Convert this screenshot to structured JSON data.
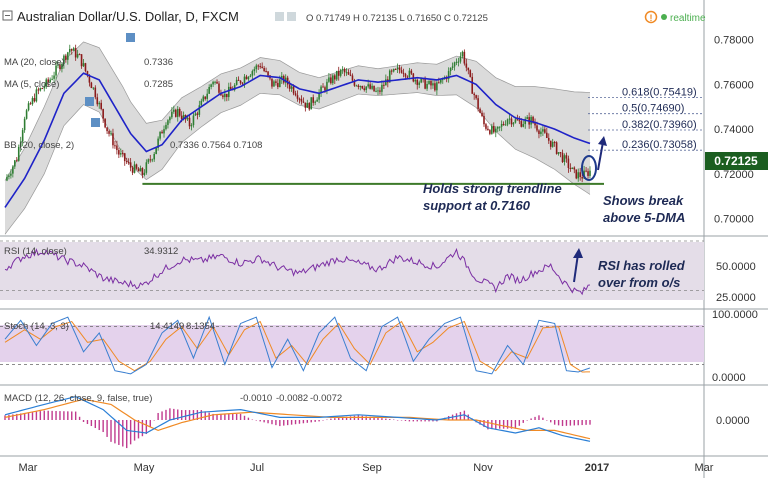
{
  "header": {
    "title": "Australian Dollar/U.S. Dollar, D, FXCM",
    "ohlc": "O 0.71749  H 0.72135  L 0.71650  C 0.72125",
    "realtime_label": "realtime"
  },
  "legend": {
    "ma20": "MA (20, close)",
    "ma20_value": "0.7336",
    "ma5": "MA (5, close)",
    "ma5_value": "0.7285",
    "bb": "BB (20, close, 2)",
    "bb_values": "0.7336  0.7564  0.7108",
    "rsi": "RSI (14, close)",
    "rsi_value": "34.9312",
    "stoch": "Stoch (14, 3, 3)",
    "stoch_k": "14.4149",
    "stoch_d": "8.1354",
    "macd": "MACD (12, 26, close, 9, false, true)",
    "macd_hist": "-0.0010",
    "macd_line": "-0.0082",
    "macd_signal": "-0.0072"
  },
  "fib_labels": [
    {
      "text": "0.618(0.75419)",
      "level": 0.75419
    },
    {
      "text": "0.5(0.74690)",
      "level": 0.7469
    },
    {
      "text": "0.382(0.73960)",
      "level": 0.7396
    },
    {
      "text": "0.236(0.73058)",
      "level": 0.73058
    }
  ],
  "annotations": {
    "trendline_line1": "Holds strong trendline",
    "trendline_line2": "support at 0.7160",
    "break_line1": "Shows break",
    "break_line2": "above 5-DMA",
    "rsi_line1": "RSI has rolled",
    "rsi_line2": "over from o/s"
  },
  "colors": {
    "candle_up": "#2e7d32",
    "candle_down": "#8b1a1a",
    "ma20": "#1f23c8",
    "band_fill": "#cfcfcf",
    "rsi": "#7b2fa3",
    "stoch_k": "#3a7fd0",
    "stoch_d": "#f08a24",
    "macd_line": "#2a7fd6",
    "macd_signal": "#f08a24",
    "macd_hist": "#c03a8e",
    "trendline": "#3d7a2a",
    "price_tag": "#1b5e20"
  },
  "chart_data": {
    "type": "candlestick",
    "x_ticks": [
      "Mar",
      "May",
      "Jul",
      "Sep",
      "Nov",
      "2017",
      "Mar"
    ],
    "price_axis_ticks": [
      "0.78000",
      "0.76000",
      "0.74000",
      "0.72000",
      "0.70000"
    ],
    "price_range": [
      0.694,
      0.787
    ],
    "last_price": "0.72125",
    "trendline_level": 0.716,
    "rsi_axis_ticks": [
      "50.0000",
      "25.0000"
    ],
    "rsi_bands": [
      30,
      70
    ],
    "stoch_axis_ticks": [
      "100.0000",
      "0.0000"
    ],
    "stoch_bands": [
      20,
      80
    ],
    "macd_axis_ticks": [
      "0.0000"
    ],
    "close_path": [
      {
        "x": 0,
        "v": 0.717
      },
      {
        "x": 6,
        "v": 0.727
      },
      {
        "x": 10,
        "v": 0.746
      },
      {
        "x": 16,
        "v": 0.756
      },
      {
        "x": 22,
        "v": 0.761
      },
      {
        "x": 28,
        "v": 0.769
      },
      {
        "x": 33,
        "v": 0.776
      },
      {
        "x": 38,
        "v": 0.772
      },
      {
        "x": 42,
        "v": 0.764
      },
      {
        "x": 46,
        "v": 0.756
      },
      {
        "x": 52,
        "v": 0.74
      },
      {
        "x": 58,
        "v": 0.729
      },
      {
        "x": 64,
        "v": 0.723
      },
      {
        "x": 70,
        "v": 0.72
      },
      {
        "x": 76,
        "v": 0.73
      },
      {
        "x": 82,
        "v": 0.744
      },
      {
        "x": 88,
        "v": 0.748
      },
      {
        "x": 94,
        "v": 0.742
      },
      {
        "x": 100,
        "v": 0.751
      },
      {
        "x": 106,
        "v": 0.762
      },
      {
        "x": 112,
        "v": 0.755
      },
      {
        "x": 118,
        "v": 0.76
      },
      {
        "x": 124,
        "v": 0.765
      },
      {
        "x": 130,
        "v": 0.769
      },
      {
        "x": 136,
        "v": 0.76
      },
      {
        "x": 142,
        "v": 0.762
      },
      {
        "x": 148,
        "v": 0.757
      },
      {
        "x": 154,
        "v": 0.75
      },
      {
        "x": 160,
        "v": 0.756
      },
      {
        "x": 166,
        "v": 0.762
      },
      {
        "x": 172,
        "v": 0.766
      },
      {
        "x": 178,
        "v": 0.761
      },
      {
        "x": 184,
        "v": 0.759
      },
      {
        "x": 190,
        "v": 0.756
      },
      {
        "x": 196,
        "v": 0.764
      },
      {
        "x": 202,
        "v": 0.767
      },
      {
        "x": 208,
        "v": 0.763
      },
      {
        "x": 214,
        "v": 0.76
      },
      {
        "x": 220,
        "v": 0.759
      },
      {
        "x": 226,
        "v": 0.765
      },
      {
        "x": 230,
        "v": 0.771
      },
      {
        "x": 233,
        "v": 0.774
      },
      {
        "x": 238,
        "v": 0.758
      },
      {
        "x": 244,
        "v": 0.742
      },
      {
        "x": 250,
        "v": 0.738
      },
      {
        "x": 256,
        "v": 0.745
      },
      {
        "x": 262,
        "v": 0.743
      },
      {
        "x": 268,
        "v": 0.744
      },
      {
        "x": 274,
        "v": 0.738
      },
      {
        "x": 280,
        "v": 0.732
      },
      {
        "x": 286,
        "v": 0.725
      },
      {
        "x": 290,
        "v": 0.72
      },
      {
        "x": 294,
        "v": 0.719
      },
      {
        "x": 298,
        "v": 0.7212
      }
    ],
    "ma20_path": [
      {
        "x": 0,
        "v": 0.705
      },
      {
        "x": 10,
        "v": 0.718
      },
      {
        "x": 20,
        "v": 0.735
      },
      {
        "x": 30,
        "v": 0.756
      },
      {
        "x": 40,
        "v": 0.765
      },
      {
        "x": 48,
        "v": 0.762
      },
      {
        "x": 56,
        "v": 0.75
      },
      {
        "x": 64,
        "v": 0.738
      },
      {
        "x": 72,
        "v": 0.73
      },
      {
        "x": 80,
        "v": 0.733
      },
      {
        "x": 90,
        "v": 0.744
      },
      {
        "x": 100,
        "v": 0.75
      },
      {
        "x": 110,
        "v": 0.756
      },
      {
        "x": 120,
        "v": 0.759
      },
      {
        "x": 130,
        "v": 0.764
      },
      {
        "x": 140,
        "v": 0.763
      },
      {
        "x": 150,
        "v": 0.758
      },
      {
        "x": 160,
        "v": 0.756
      },
      {
        "x": 170,
        "v": 0.759
      },
      {
        "x": 180,
        "v": 0.762
      },
      {
        "x": 190,
        "v": 0.761
      },
      {
        "x": 200,
        "v": 0.762
      },
      {
        "x": 210,
        "v": 0.763
      },
      {
        "x": 220,
        "v": 0.762
      },
      {
        "x": 230,
        "v": 0.764
      },
      {
        "x": 240,
        "v": 0.76
      },
      {
        "x": 250,
        "v": 0.751
      },
      {
        "x": 260,
        "v": 0.745
      },
      {
        "x": 270,
        "v": 0.743
      },
      {
        "x": 280,
        "v": 0.74
      },
      {
        "x": 290,
        "v": 0.736
      },
      {
        "x": 298,
        "v": 0.7336
      }
    ],
    "bb_width": [
      {
        "x": 0,
        "v": 0.012
      },
      {
        "x": 20,
        "v": 0.015
      },
      {
        "x": 40,
        "v": 0.014
      },
      {
        "x": 60,
        "v": 0.015
      },
      {
        "x": 80,
        "v": 0.011
      },
      {
        "x": 100,
        "v": 0.009
      },
      {
        "x": 130,
        "v": 0.008
      },
      {
        "x": 160,
        "v": 0.007
      },
      {
        "x": 190,
        "v": 0.006
      },
      {
        "x": 220,
        "v": 0.007
      },
      {
        "x": 250,
        "v": 0.012
      },
      {
        "x": 280,
        "v": 0.018
      },
      {
        "x": 298,
        "v": 0.0228
      }
    ],
    "rsi_path": [
      {
        "x": 0,
        "v": 48
      },
      {
        "x": 10,
        "v": 58
      },
      {
        "x": 20,
        "v": 62
      },
      {
        "x": 30,
        "v": 55
      },
      {
        "x": 40,
        "v": 50
      },
      {
        "x": 50,
        "v": 40
      },
      {
        "x": 60,
        "v": 36
      },
      {
        "x": 70,
        "v": 34
      },
      {
        "x": 80,
        "v": 46
      },
      {
        "x": 90,
        "v": 55
      },
      {
        "x": 100,
        "v": 54
      },
      {
        "x": 110,
        "v": 58
      },
      {
        "x": 120,
        "v": 52
      },
      {
        "x": 130,
        "v": 56
      },
      {
        "x": 140,
        "v": 48
      },
      {
        "x": 150,
        "v": 44
      },
      {
        "x": 160,
        "v": 50
      },
      {
        "x": 170,
        "v": 56
      },
      {
        "x": 180,
        "v": 52
      },
      {
        "x": 190,
        "v": 47
      },
      {
        "x": 200,
        "v": 57
      },
      {
        "x": 210,
        "v": 53
      },
      {
        "x": 220,
        "v": 49
      },
      {
        "x": 230,
        "v": 62
      },
      {
        "x": 240,
        "v": 40
      },
      {
        "x": 250,
        "v": 32
      },
      {
        "x": 256,
        "v": 42
      },
      {
        "x": 262,
        "v": 38
      },
      {
        "x": 270,
        "v": 45
      },
      {
        "x": 278,
        "v": 50
      },
      {
        "x": 284,
        "v": 38
      },
      {
        "x": 290,
        "v": 30
      },
      {
        "x": 294,
        "v": 28
      },
      {
        "x": 298,
        "v": 34.93
      }
    ],
    "stoch_k_path": [
      {
        "x": 0,
        "v": 60
      },
      {
        "x": 8,
        "v": 90
      },
      {
        "x": 16,
        "v": 50
      },
      {
        "x": 24,
        "v": 85
      },
      {
        "x": 32,
        "v": 95
      },
      {
        "x": 40,
        "v": 40
      },
      {
        "x": 48,
        "v": 70
      },
      {
        "x": 56,
        "v": 10
      },
      {
        "x": 64,
        "v": 5
      },
      {
        "x": 72,
        "v": 20
      },
      {
        "x": 80,
        "v": 70
      },
      {
        "x": 88,
        "v": 90
      },
      {
        "x": 96,
        "v": 30
      },
      {
        "x": 104,
        "v": 95
      },
      {
        "x": 112,
        "v": 20
      },
      {
        "x": 120,
        "v": 85
      },
      {
        "x": 128,
        "v": 95
      },
      {
        "x": 136,
        "v": 15
      },
      {
        "x": 144,
        "v": 60
      },
      {
        "x": 152,
        "v": 10
      },
      {
        "x": 160,
        "v": 70
      },
      {
        "x": 168,
        "v": 95
      },
      {
        "x": 176,
        "v": 30
      },
      {
        "x": 184,
        "v": 10
      },
      {
        "x": 192,
        "v": 80
      },
      {
        "x": 200,
        "v": 95
      },
      {
        "x": 208,
        "v": 25
      },
      {
        "x": 216,
        "v": 60
      },
      {
        "x": 224,
        "v": 85
      },
      {
        "x": 232,
        "v": 95
      },
      {
        "x": 240,
        "v": 10
      },
      {
        "x": 248,
        "v": 5
      },
      {
        "x": 256,
        "v": 50
      },
      {
        "x": 264,
        "v": 20
      },
      {
        "x": 272,
        "v": 90
      },
      {
        "x": 280,
        "v": 85
      },
      {
        "x": 286,
        "v": 10
      },
      {
        "x": 292,
        "v": 8
      },
      {
        "x": 298,
        "v": 14.41
      }
    ],
    "stoch_d_path": [
      {
        "x": 0,
        "v": 55
      },
      {
        "x": 10,
        "v": 75
      },
      {
        "x": 18,
        "v": 60
      },
      {
        "x": 26,
        "v": 80
      },
      {
        "x": 34,
        "v": 88
      },
      {
        "x": 42,
        "v": 55
      },
      {
        "x": 50,
        "v": 60
      },
      {
        "x": 58,
        "v": 25
      },
      {
        "x": 66,
        "v": 10
      },
      {
        "x": 74,
        "v": 25
      },
      {
        "x": 82,
        "v": 60
      },
      {
        "x": 90,
        "v": 80
      },
      {
        "x": 98,
        "v": 45
      },
      {
        "x": 106,
        "v": 80
      },
      {
        "x": 114,
        "v": 35
      },
      {
        "x": 122,
        "v": 75
      },
      {
        "x": 130,
        "v": 88
      },
      {
        "x": 138,
        "v": 30
      },
      {
        "x": 146,
        "v": 50
      },
      {
        "x": 154,
        "v": 20
      },
      {
        "x": 162,
        "v": 60
      },
      {
        "x": 170,
        "v": 85
      },
      {
        "x": 178,
        "v": 45
      },
      {
        "x": 186,
        "v": 20
      },
      {
        "x": 194,
        "v": 70
      },
      {
        "x": 202,
        "v": 88
      },
      {
        "x": 210,
        "v": 40
      },
      {
        "x": 218,
        "v": 55
      },
      {
        "x": 226,
        "v": 78
      },
      {
        "x": 234,
        "v": 88
      },
      {
        "x": 242,
        "v": 25
      },
      {
        "x": 250,
        "v": 10
      },
      {
        "x": 258,
        "v": 40
      },
      {
        "x": 266,
        "v": 30
      },
      {
        "x": 274,
        "v": 78
      },
      {
        "x": 282,
        "v": 80
      },
      {
        "x": 288,
        "v": 20
      },
      {
        "x": 294,
        "v": 8
      },
      {
        "x": 298,
        "v": 8.14
      }
    ],
    "macd_path": [
      {
        "x": 0,
        "v": 0.002
      },
      {
        "x": 20,
        "v": 0.006
      },
      {
        "x": 36,
        "v": 0.009
      },
      {
        "x": 50,
        "v": 0.004
      },
      {
        "x": 62,
        "v": -0.004
      },
      {
        "x": 72,
        "v": -0.005
      },
      {
        "x": 84,
        "v": 0.0
      },
      {
        "x": 100,
        "v": 0.003
      },
      {
        "x": 120,
        "v": 0.004
      },
      {
        "x": 140,
        "v": 0.001
      },
      {
        "x": 160,
        "v": 0.001
      },
      {
        "x": 180,
        "v": 0.002
      },
      {
        "x": 200,
        "v": 0.001
      },
      {
        "x": 220,
        "v": 0.0
      },
      {
        "x": 234,
        "v": 0.002
      },
      {
        "x": 246,
        "v": -0.003
      },
      {
        "x": 260,
        "v": -0.005
      },
      {
        "x": 272,
        "v": -0.003
      },
      {
        "x": 284,
        "v": -0.006
      },
      {
        "x": 298,
        "v": -0.0082
      }
    ],
    "macd_signal_path": [
      {
        "x": 0,
        "v": 0.001
      },
      {
        "x": 20,
        "v": 0.004
      },
      {
        "x": 40,
        "v": 0.008
      },
      {
        "x": 54,
        "v": 0.006
      },
      {
        "x": 66,
        "v": 0.0
      },
      {
        "x": 78,
        "v": -0.004
      },
      {
        "x": 90,
        "v": -0.001
      },
      {
        "x": 106,
        "v": 0.002
      },
      {
        "x": 126,
        "v": 0.003
      },
      {
        "x": 146,
        "v": 0.002
      },
      {
        "x": 166,
        "v": 0.001
      },
      {
        "x": 186,
        "v": 0.001
      },
      {
        "x": 206,
        "v": 0.001
      },
      {
        "x": 226,
        "v": 0.0
      },
      {
        "x": 240,
        "v": 0.0
      },
      {
        "x": 252,
        "v": -0.002
      },
      {
        "x": 266,
        "v": -0.004
      },
      {
        "x": 280,
        "v": -0.004
      },
      {
        "x": 298,
        "v": -0.0072
      }
    ]
  }
}
